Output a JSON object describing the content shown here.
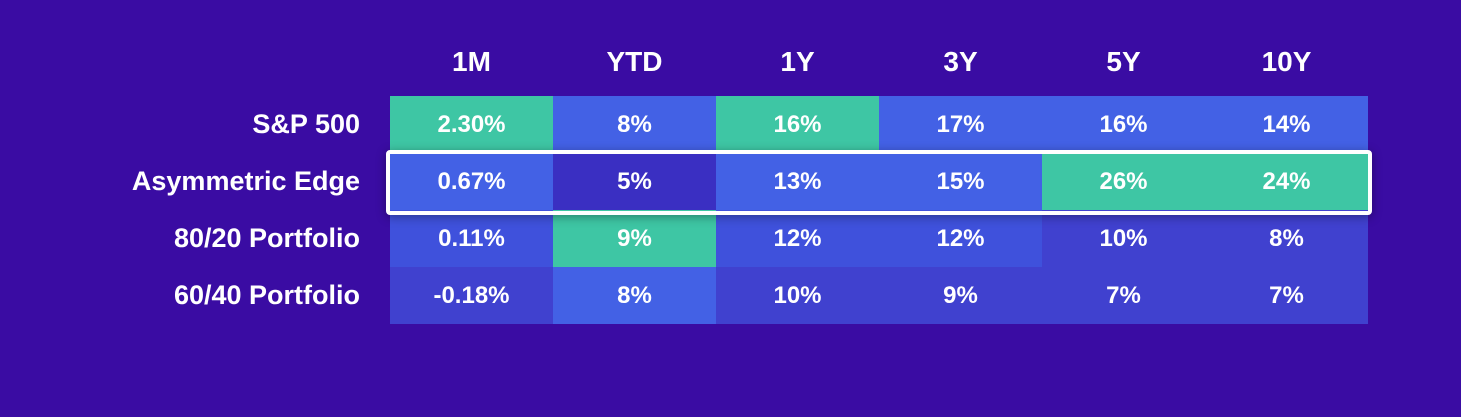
{
  "chart_data": {
    "type": "table",
    "title": "",
    "columns": [
      "1M",
      "YTD",
      "1Y",
      "3Y",
      "5Y",
      "10Y"
    ],
    "rows": [
      {
        "label": "S&P 500",
        "cells": [
          "2.30%",
          "8%",
          "16%",
          "17%",
          "16%",
          "14%"
        ]
      },
      {
        "label": "Asymmetric Edge",
        "cells": [
          "0.67%",
          "5%",
          "13%",
          "15%",
          "26%",
          "24%"
        ]
      },
      {
        "label": "80/20 Portfolio",
        "cells": [
          "0.11%",
          "9%",
          "12%",
          "12%",
          "10%",
          "8%"
        ]
      },
      {
        "label": "60/40 Portfolio",
        "cells": [
          "-0.18%",
          "8%",
          "10%",
          "9%",
          "7%",
          "7%"
        ]
      }
    ],
    "highlighted_row": "Asymmetric Edge"
  },
  "colors": {
    "background": "#3a0ca3",
    "best": "#3ec6a4",
    "high": "#4361e5",
    "mid": "#3f51dc",
    "low": "#4041cf",
    "lowest": "#3a2fc2",
    "highlight_border": "#ffffff"
  },
  "cell_shades": [
    [
      "best",
      "high",
      "best",
      "high",
      "high",
      "high"
    ],
    [
      "high",
      "lowest",
      "high",
      "high",
      "best",
      "best"
    ],
    [
      "mid",
      "best",
      "mid",
      "mid",
      "low",
      "low"
    ],
    [
      "low",
      "high",
      "low",
      "low",
      "low",
      "low"
    ]
  ]
}
